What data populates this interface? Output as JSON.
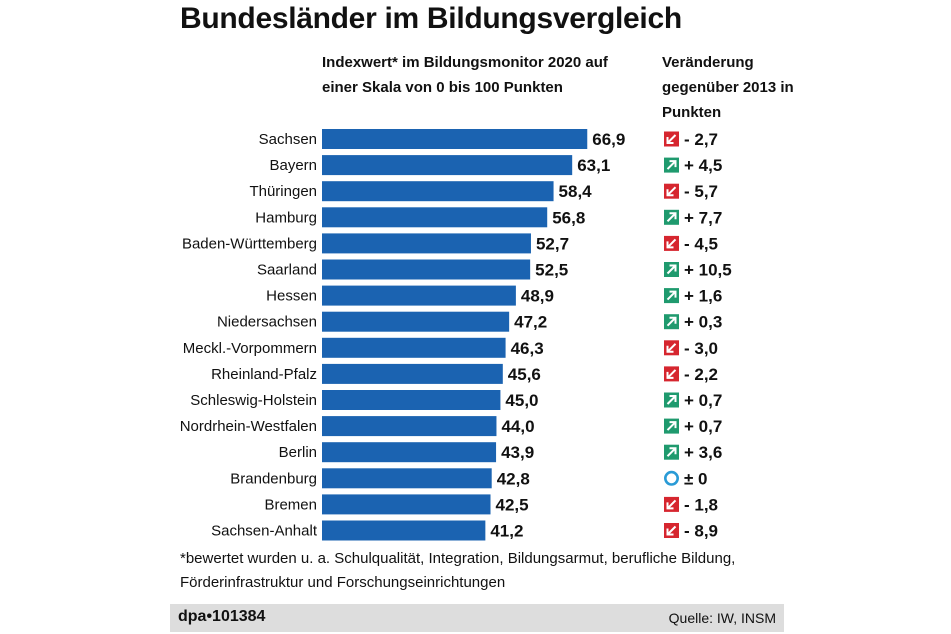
{
  "title": "Bundesländer im Bildungsvergleich",
  "subtitle": "Indexwert* im Bildungsmonitor 2020 auf einer Skala von 0 bis 100 Punkten",
  "change_header": "Veränderung gegenüber 2013 in Punkten",
  "footnote": "*bewertet wurden u. a. Schulqualität, Integration, Bildungsarmut, berufliche Bildung, Förderinfrastruktur und Forschungseinrichtungen",
  "source_id": "dpa•101384",
  "source": "Quelle: IW, INSM",
  "colors": {
    "bar": "#1b63b1",
    "up": "#1f9a6e",
    "down": "#d6262f",
    "neutral": "#2a9bd6"
  },
  "chart_data": {
    "type": "bar",
    "orientation": "horizontal",
    "categories": [
      "Sachsen",
      "Bayern",
      "Thüringen",
      "Hamburg",
      "Baden-Württemberg",
      "Saarland",
      "Hessen",
      "Niedersachsen",
      "Meckl.-Vorpommern",
      "Rheinland-Pfalz",
      "Schleswig-Holstein",
      "Nordrhein-Westfalen",
      "Berlin",
      "Brandenburg",
      "Bremen",
      "Sachsen-Anhalt"
    ],
    "values": [
      66.9,
      63.1,
      58.4,
      56.8,
      52.7,
      52.5,
      48.9,
      47.2,
      46.3,
      45.6,
      45.0,
      44.0,
      43.9,
      42.8,
      42.5,
      41.2
    ],
    "value_labels": [
      "66,9",
      "63,1",
      "58,4",
      "56,8",
      "52,7",
      "52,5",
      "48,9",
      "47,2",
      "46,3",
      "45,6",
      "45,0",
      "44,0",
      "43,9",
      "42,8",
      "42,5",
      "41,2"
    ],
    "changes": [
      -2.7,
      4.5,
      -5.7,
      7.7,
      -4.5,
      10.5,
      1.6,
      0.3,
      -3.0,
      -2.2,
      0.7,
      0.7,
      3.6,
      0,
      -1.8,
      -8.9
    ],
    "change_labels": [
      "-  2,7",
      "+  4,5",
      "-  5,7",
      "+  7,7",
      "-  4,5",
      "+  10,5",
      "+  1,6",
      "+  0,3",
      "-  3,0",
      "-  2,2",
      "+  0,7",
      "+  0,7",
      "+  3,6",
      "±  0",
      "-  1,8",
      "-  8,9"
    ],
    "xlim": [
      0,
      100
    ]
  }
}
